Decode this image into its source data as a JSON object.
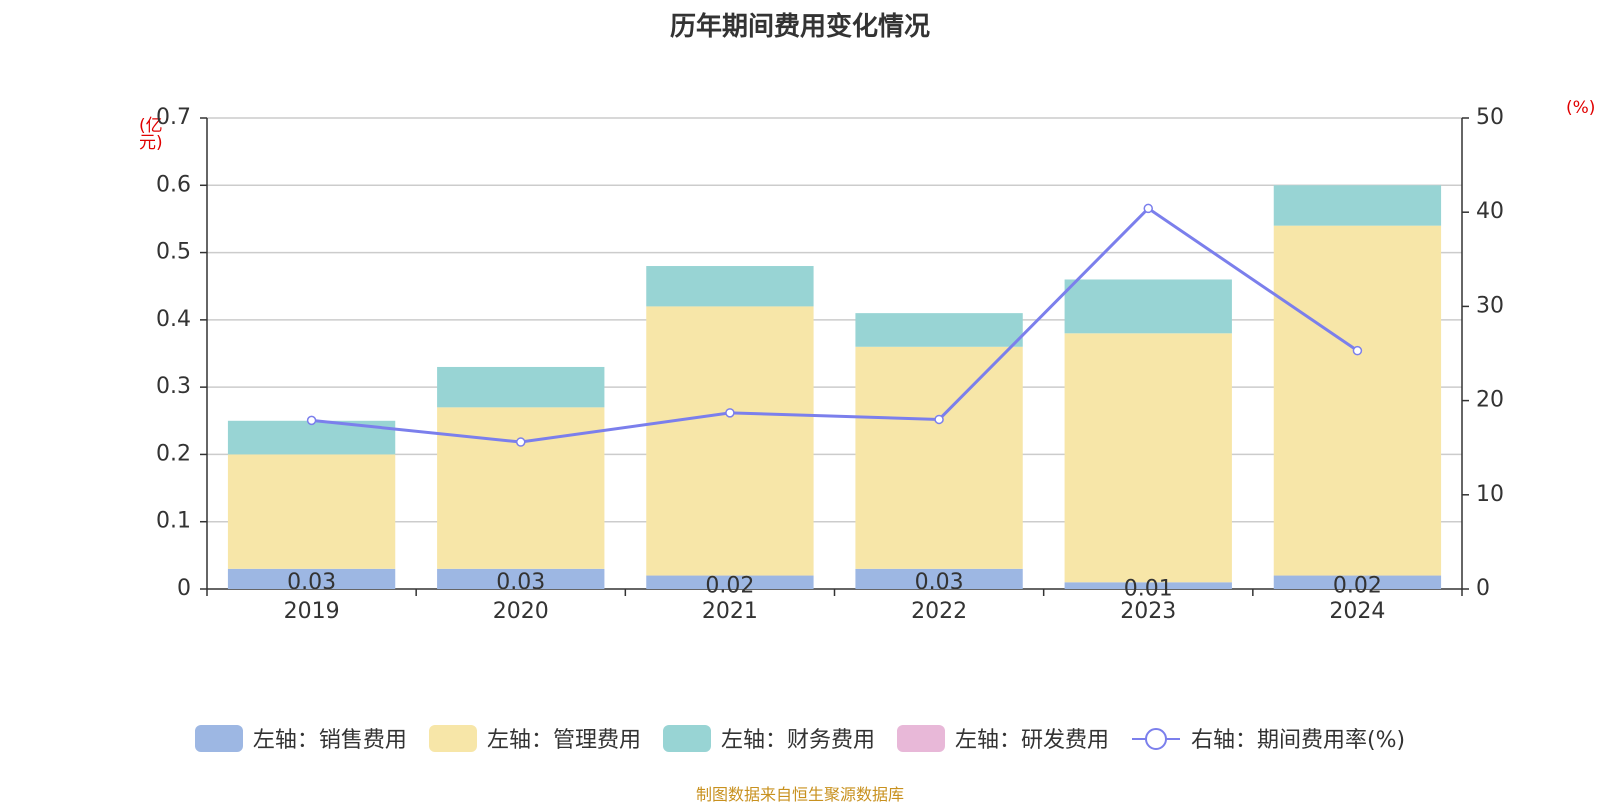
{
  "title": "历年期间费用变化情况",
  "left_unit": "(亿元)",
  "right_unit": "(%)",
  "source": "制图数据来自恒生聚源数据库",
  "colors": {
    "sales": "#9db7e3",
    "admin": "#f7e6a8",
    "finance": "#98d4d4",
    "rd": "#e8b8d8",
    "ratio": "#7b7fec",
    "grid": "#cccccc",
    "axis": "#333333"
  },
  "chart_data": {
    "type": "bar",
    "categories": [
      "2019",
      "2020",
      "2021",
      "2022",
      "2023",
      "2024"
    ],
    "series": [
      {
        "name": "左轴：销售费用",
        "axis": "left",
        "type": "bar",
        "values": [
          0.03,
          0.03,
          0.02,
          0.03,
          0.01,
          0.02
        ]
      },
      {
        "name": "左轴：管理费用",
        "axis": "left",
        "type": "bar",
        "values": [
          0.17,
          0.24,
          0.4,
          0.33,
          0.37,
          0.52
        ]
      },
      {
        "name": "左轴：财务费用",
        "axis": "left",
        "type": "bar",
        "values": [
          0.05,
          0.06,
          0.06,
          0.05,
          0.08,
          0.06
        ]
      },
      {
        "name": "左轴：研发费用",
        "axis": "left",
        "type": "bar",
        "values": [
          0,
          0,
          0,
          0,
          0,
          0
        ]
      },
      {
        "name": "右轴：期间费用率(%)",
        "axis": "right",
        "type": "line",
        "values": [
          17.9,
          15.6,
          18.7,
          18.0,
          40.4,
          25.3
        ]
      }
    ],
    "data_labels": [
      "0.03",
      "0.03",
      "0.02",
      "0.03",
      "0.01",
      "0.02"
    ],
    "y_left": {
      "min": 0,
      "max": 0.7,
      "ticks": [
        "0",
        "0.1",
        "0.2",
        "0.3",
        "0.4",
        "0.5",
        "0.6",
        "0.7"
      ]
    },
    "y_right": {
      "min": 0,
      "max": 50,
      "ticks": [
        "0",
        "10",
        "20",
        "30",
        "40",
        "50"
      ]
    },
    "grid": true,
    "legend_position": "bottom"
  }
}
